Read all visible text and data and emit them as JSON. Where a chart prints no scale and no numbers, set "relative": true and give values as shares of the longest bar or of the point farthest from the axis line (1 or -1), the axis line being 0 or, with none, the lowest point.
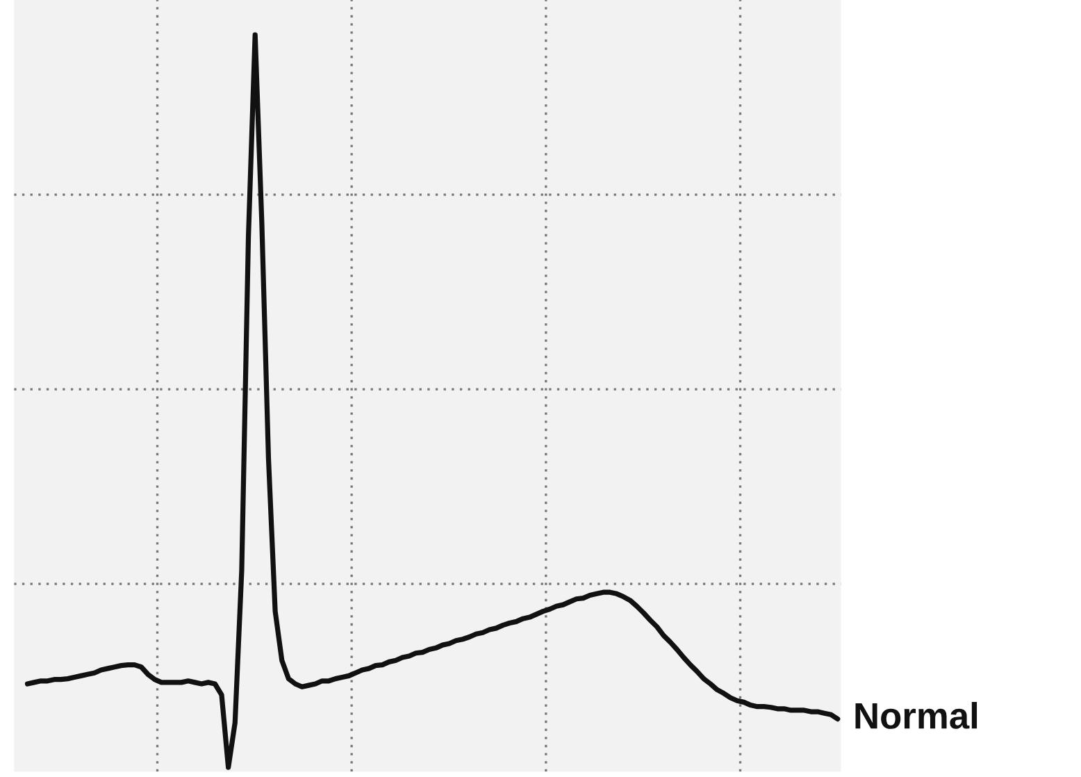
{
  "chart_data": {
    "type": "line",
    "relative": true,
    "grid": true,
    "legend": false,
    "marker": "none",
    "line_style": "solid",
    "categories": [
      null,
      null,
      null,
      null,
      null,
      null,
      null,
      null,
      null,
      null,
      null,
      null,
      null,
      null,
      null,
      null,
      null,
      null,
      null,
      null,
      null,
      null,
      null,
      null,
      null,
      null,
      null,
      null,
      null,
      null,
      null,
      null,
      null,
      null,
      null,
      null,
      null,
      null,
      null,
      null,
      null,
      null,
      null,
      null,
      null,
      null,
      null,
      null,
      null,
      null,
      null,
      null,
      null,
      null,
      null,
      null,
      null,
      null,
      null,
      null,
      null,
      null,
      null,
      null,
      null,
      null,
      null,
      null,
      null,
      null,
      null,
      null,
      null,
      null,
      null,
      null,
      null,
      null,
      null,
      null,
      null,
      null,
      null,
      null,
      null,
      null,
      null,
      null,
      null,
      null,
      null,
      null,
      null,
      null,
      null,
      null,
      null,
      null,
      null,
      null,
      null,
      null,
      null,
      null,
      null,
      null,
      null,
      null,
      null,
      null,
      null,
      null,
      null,
      null,
      null,
      null,
      null,
      null,
      null,
      null,
      null,
      null
    ],
    "series": [
      {
        "name": "Normal",
        "color": "#111111",
        "values": [
          0.114,
          0.116,
          0.118,
          0.118,
          0.12,
          0.12,
          0.121,
          0.123,
          0.125,
          0.127,
          0.129,
          0.133,
          0.135,
          0.137,
          0.139,
          0.14,
          0.14,
          0.137,
          0.127,
          0.12,
          0.116,
          0.116,
          0.116,
          0.116,
          0.118,
          0.116,
          0.114,
          0.116,
          0.114,
          0.099,
          0,
          0.061,
          0.269,
          0.725,
          1,
          0.744,
          0.421,
          0.213,
          0.146,
          0.121,
          0.114,
          0.11,
          0.112,
          0.114,
          0.118,
          0.118,
          0.121,
          0.123,
          0.125,
          0.129,
          0.133,
          0.135,
          0.139,
          0.14,
          0.144,
          0.146,
          0.15,
          0.152,
          0.156,
          0.157,
          0.161,
          0.163,
          0.167,
          0.169,
          0.173,
          0.175,
          0.178,
          0.182,
          0.184,
          0.188,
          0.19,
          0.194,
          0.197,
          0.199,
          0.203,
          0.205,
          0.209,
          0.213,
          0.216,
          0.22,
          0.222,
          0.226,
          0.23,
          0.231,
          0.235,
          0.237,
          0.239,
          0.239,
          0.237,
          0.233,
          0.228,
          0.22,
          0.211,
          0.201,
          0.192,
          0.18,
          0.171,
          0.161,
          0.15,
          0.14,
          0.131,
          0.121,
          0.114,
          0.106,
          0.101,
          0.095,
          0.091,
          0.089,
          0.085,
          0.083,
          0.083,
          0.082,
          0.08,
          0.08,
          0.078,
          0.078,
          0.078,
          0.076,
          0.076,
          0.074,
          0.072,
          0.066
        ]
      }
    ]
  }
}
